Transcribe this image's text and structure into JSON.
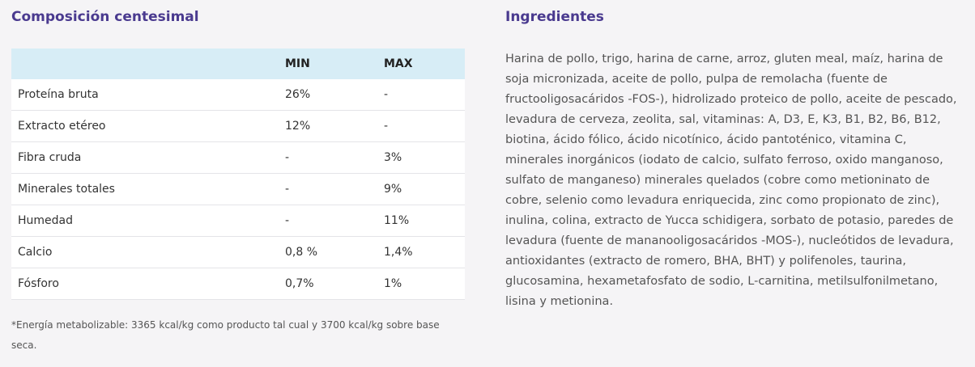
{
  "composition": {
    "title": "Composición centesimal",
    "columns": [
      "",
      "MIN",
      "MAX"
    ],
    "rows": [
      {
        "name": "Proteína bruta",
        "min": "26%",
        "max": "-"
      },
      {
        "name": "Extracto etéreo",
        "min": "12%",
        "max": "-"
      },
      {
        "name": "Fibra cruda",
        "min": "-",
        "max": "3%"
      },
      {
        "name": "Minerales totales",
        "min": "-",
        "max": "9%"
      },
      {
        "name": "Humedad",
        "min": "-",
        "max": "11%"
      },
      {
        "name": "Calcio",
        "min": "0,8 %",
        "max": "1,4%"
      },
      {
        "name": "Fósforo",
        "min": "0,7%",
        "max": "1%"
      }
    ],
    "note": "*Energía metabolizable: 3365 kcal/kg como producto tal cual y 3700 kcal/kg sobre base seca."
  },
  "ingredients": {
    "title": "Ingredientes",
    "text": "Harina de pollo, trigo, harina de carne, arroz, gluten meal, maíz, harina de soja micronizada, aceite de pollo, pulpa de remolacha (fuente de fructooligosacáridos -FOS-), hidrolizado proteico de pollo, aceite de pescado, levadura de cerveza, zeolita, sal, vitaminas: A, D3, E, K3, B1, B2, B6, B12, biotina, ácido fólico, ácido nicotínico, ácido pantoténico, vitamina C, minerales inorgánicos (iodato de calcio, sulfato ferroso, oxido manganoso, sulfato de manganeso) minerales quelados (cobre como metioninato de cobre, selenio como levadura enriquecida, zinc como propionato de zinc), inulina, colina, extracto de Yucca schidigera, sorbato de potasio, paredes de levadura (fuente de mananooligosacáridos -MOS-), nucleótidos de levadura, antioxidantes (extracto de romero, BHA, BHT) y polifenoles, taurina, glucosamina, hexametafosfato de sodio, L-carnitina, metilsulfonilmetano, lisina y metionina."
  }
}
